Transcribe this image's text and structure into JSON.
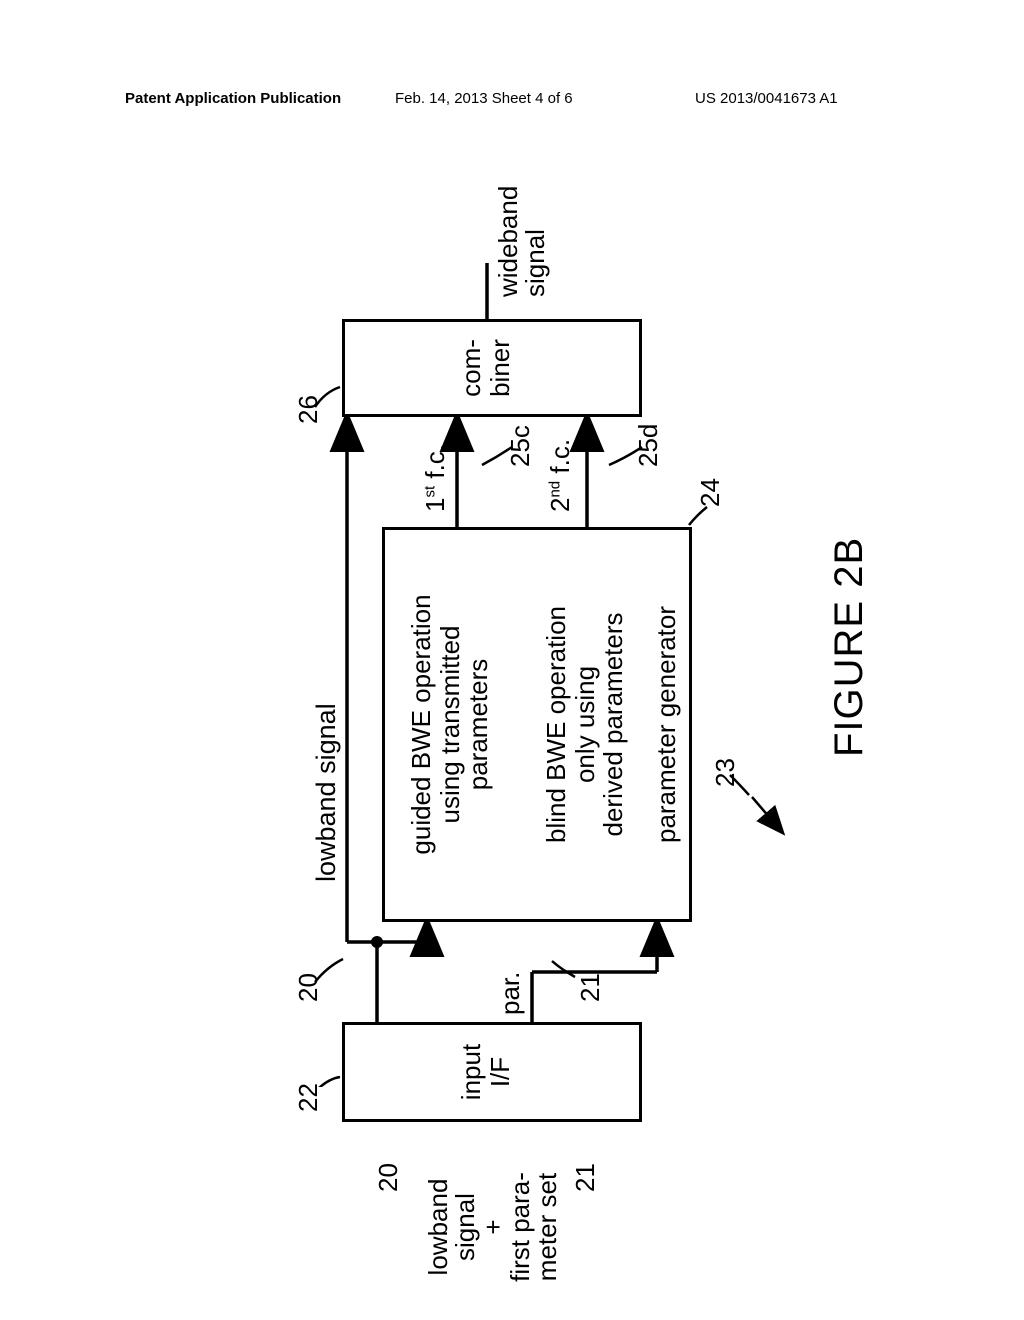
{
  "header": {
    "left": "Patent Application Publication",
    "center": "Feb. 14, 2013  Sheet 4 of 6",
    "right": "US 2013/0041673 A1"
  },
  "figure_caption": "FIGURE 2B",
  "labels": {
    "input_main": "lowband\nsignal\n+\nfirst para-\nmeter set",
    "ref20a": "20",
    "ref21a": "21",
    "inputIF": "input\nI/F",
    "ref22": "22",
    "ref20b": "20",
    "lowband_top": "lowband signal",
    "par": "par.",
    "ref21b": "21",
    "guided": "guided BWE operation\nusing transmitted\nparameters",
    "blind": "blind BWE operation\nonly using\nderived parameters",
    "paramgen": "parameter generator",
    "ref24": "24",
    "ref23": "23",
    "fc1": "1",
    "fc1_suffix": "st",
    "fc1_rest": " f.c.",
    "ref25c": "25c",
    "fc2": "2",
    "fc2_suffix": "nd",
    "fc2_rest": " f.c.",
    "ref25d": "25d",
    "combiner": "com-\nbiner",
    "ref26": "26",
    "wideband": "wideband\nsignal"
  },
  "style": {
    "stroke": "#000000",
    "stroke_width": 3.5,
    "dash": "10,8"
  }
}
